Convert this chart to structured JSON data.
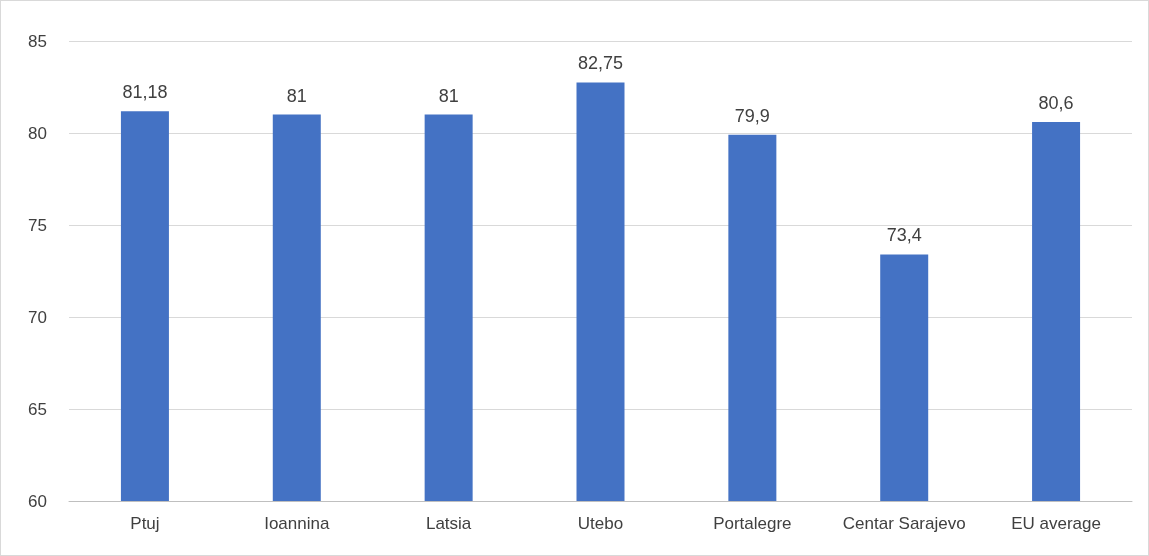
{
  "chart_data": {
    "type": "bar",
    "categories": [
      "Ptuj",
      "Ioannina",
      "Latsia",
      "Utebo",
      "Portalegre",
      "Centar Sarajevo",
      "EU average"
    ],
    "values": [
      81.18,
      81,
      81,
      82.75,
      79.9,
      73.4,
      80.6
    ],
    "value_labels": [
      "81,18",
      "81",
      "81",
      "82,75",
      "79,9",
      "73,4",
      "80,6"
    ],
    "color": "#4472c4",
    "ylim": [
      60,
      85
    ],
    "yticks": [
      60,
      65,
      70,
      75,
      80,
      85
    ],
    "grid": "y"
  }
}
